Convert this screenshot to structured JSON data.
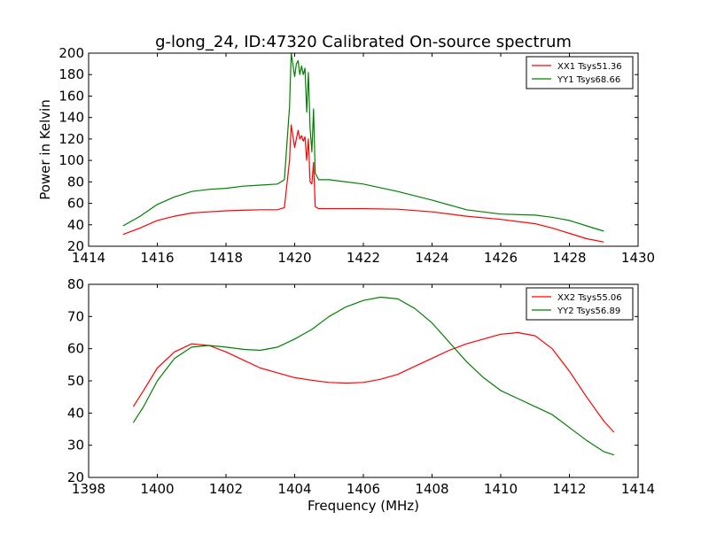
{
  "title": "g-long_24, ID:47320 Calibrated On-source spectrum",
  "colors": {
    "xx": "#ff0000",
    "yy": "#008000"
  },
  "chart_data": [
    {
      "type": "line",
      "title": "g-long_24, ID:47320 Calibrated On-source spectrum",
      "xlabel": "",
      "ylabel": "Power in Kelvin",
      "xlim": [
        1414,
        1430
      ],
      "ylim": [
        20,
        200
      ],
      "xticks": [
        1414,
        1416,
        1418,
        1420,
        1422,
        1424,
        1426,
        1428,
        1430
      ],
      "yticks": [
        20,
        40,
        60,
        80,
        100,
        120,
        140,
        160,
        180,
        200
      ],
      "legend_position": "top-right",
      "series": [
        {
          "name": "XX1 Tsys51.36",
          "color": "#ff0000",
          "x": [
            1415.0,
            1415.5,
            1416.0,
            1416.5,
            1417.0,
            1417.5,
            1418.0,
            1418.5,
            1419.0,
            1419.5,
            1419.7,
            1419.85,
            1419.9,
            1420.0,
            1420.05,
            1420.1,
            1420.15,
            1420.2,
            1420.25,
            1420.3,
            1420.35,
            1420.4,
            1420.45,
            1420.5,
            1420.55,
            1420.6,
            1420.7,
            1421.0,
            1422.0,
            1423.0,
            1424.0,
            1425.0,
            1426.0,
            1427.0,
            1427.5,
            1428.0,
            1428.5,
            1429.0
          ],
          "values": [
            31,
            37,
            44,
            48,
            51,
            52,
            53,
            53.5,
            54,
            54,
            56,
            100,
            133,
            112,
            120,
            128,
            120,
            123,
            118,
            122,
            100,
            120,
            80,
            78,
            98,
            57,
            55,
            55,
            55,
            54.5,
            52,
            48,
            45,
            41,
            37,
            32,
            27,
            24
          ]
        },
        {
          "name": "YY1 Tsys68.66",
          "color": "#008000",
          "x": [
            1415.0,
            1415.5,
            1416.0,
            1416.5,
            1417.0,
            1417.5,
            1418.0,
            1418.5,
            1419.0,
            1419.5,
            1419.7,
            1419.85,
            1419.9,
            1420.0,
            1420.05,
            1420.1,
            1420.15,
            1420.2,
            1420.25,
            1420.3,
            1420.35,
            1420.4,
            1420.45,
            1420.5,
            1420.55,
            1420.6,
            1420.7,
            1421.0,
            1422.0,
            1423.0,
            1424.0,
            1425.0,
            1426.0,
            1427.0,
            1427.5,
            1428.0,
            1428.5,
            1429.0
          ],
          "values": [
            39,
            48,
            59,
            66,
            71,
            73,
            74,
            76,
            77,
            78,
            82,
            150,
            200,
            178,
            190,
            193,
            180,
            188,
            180,
            186,
            145,
            182,
            130,
            108,
            148,
            88,
            82,
            82,
            78,
            71,
            63,
            54,
            50,
            49,
            47,
            44,
            39,
            34
          ]
        }
      ]
    },
    {
      "type": "line",
      "title": "",
      "xlabel": "Frequency (MHz)",
      "ylabel": "",
      "xlim": [
        1398,
        1414
      ],
      "ylim": [
        20,
        80
      ],
      "xticks": [
        1398,
        1400,
        1402,
        1404,
        1406,
        1408,
        1410,
        1412,
        1414
      ],
      "yticks": [
        20,
        30,
        40,
        50,
        60,
        70,
        80
      ],
      "legend_position": "top-right",
      "series": [
        {
          "name": "XX2 Tsys55.06",
          "color": "#ff0000",
          "x": [
            1399.3,
            1399.6,
            1400.0,
            1400.5,
            1401.0,
            1401.5,
            1402.0,
            1402.5,
            1403.0,
            1403.5,
            1404.0,
            1404.5,
            1405.0,
            1405.5,
            1406.0,
            1406.5,
            1407.0,
            1407.5,
            1408.0,
            1408.5,
            1409.0,
            1409.5,
            1410.0,
            1410.5,
            1411.0,
            1411.5,
            1412.0,
            1412.5,
            1413.0,
            1413.3
          ],
          "values": [
            42,
            47,
            54,
            59,
            61.5,
            61,
            59,
            56.5,
            54,
            52.5,
            51,
            50.2,
            49.5,
            49.3,
            49.5,
            50.5,
            52,
            54.5,
            57,
            59.5,
            61.5,
            63,
            64.5,
            65,
            64,
            60,
            53,
            45,
            37.5,
            34
          ]
        },
        {
          "name": "YY2 Tsys56.89",
          "color": "#008000",
          "x": [
            1399.3,
            1399.6,
            1400.0,
            1400.5,
            1401.0,
            1401.5,
            1402.0,
            1402.5,
            1403.0,
            1403.5,
            1404.0,
            1404.5,
            1405.0,
            1405.5,
            1406.0,
            1406.5,
            1407.0,
            1407.5,
            1408.0,
            1408.5,
            1409.0,
            1409.5,
            1410.0,
            1410.5,
            1411.0,
            1411.5,
            1412.0,
            1412.5,
            1413.0,
            1413.3
          ],
          "values": [
            37,
            42,
            50,
            57,
            60.5,
            61,
            60.5,
            59.8,
            59.5,
            60.5,
            63,
            66,
            70,
            73,
            75,
            76,
            75.5,
            72.5,
            68,
            62,
            56,
            51,
            47,
            44.5,
            42,
            39.5,
            35.5,
            31.5,
            28,
            27
          ]
        }
      ]
    }
  ]
}
